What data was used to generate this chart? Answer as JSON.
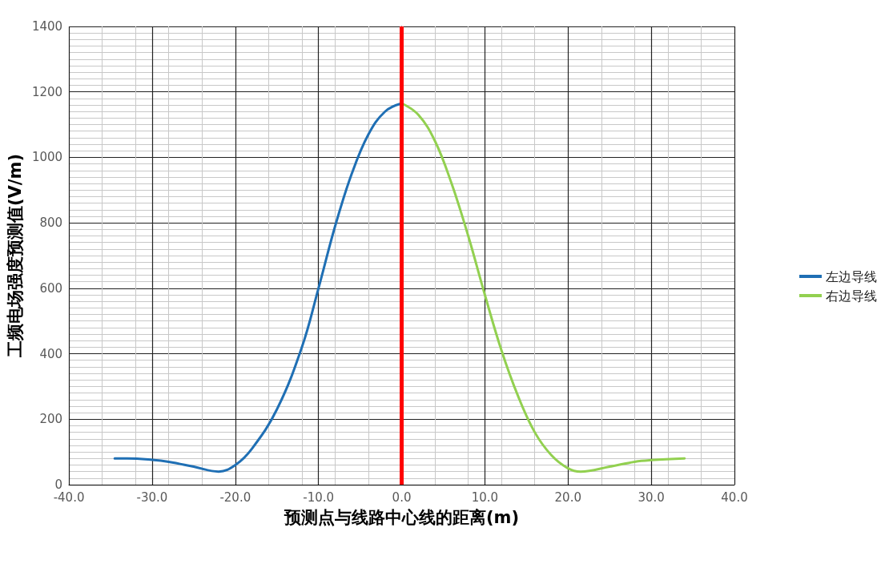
{
  "chart_data": {
    "type": "line",
    "xlabel": "预测点与线路中心线的距离(m)",
    "ylabel": "工频电场强度预测值(V/m)",
    "xlim": [
      -40,
      40
    ],
    "xticks": [
      {
        "value": -40,
        "label": "-40.0"
      },
      {
        "value": -30,
        "label": "-30.0"
      },
      {
        "value": -20,
        "label": "-20.0"
      },
      {
        "value": -10,
        "label": "-10.0"
      },
      {
        "value": 0,
        "label": "0.0"
      },
      {
        "value": 10,
        "label": "10.0"
      },
      {
        "value": 20,
        "label": "20.0"
      },
      {
        "value": 30,
        "label": "30.0"
      },
      {
        "value": 40,
        "label": "40.0"
      }
    ],
    "ylim": [
      0,
      1400
    ],
    "yticks": [
      0,
      200,
      400,
      600,
      800,
      1000,
      1200,
      1400
    ],
    "grid": true,
    "legend": "right",
    "marker": "none",
    "line_style": "solid",
    "ref_lines": [
      {
        "axis": "x",
        "value": 0,
        "color": "#ff0000"
      }
    ],
    "series": [
      {
        "name": "左边导线",
        "color": "#1f6fb4",
        "x": [
          -34.5,
          -33,
          -30,
          -28,
          -25,
          -22,
          -20,
          -18,
          -15,
          -12,
          -10,
          -8,
          -6,
          -4,
          -2,
          0
        ],
        "values": [
          80,
          80,
          76,
          70,
          55,
          40,
          60,
          110,
          230,
          420,
          600,
          790,
          950,
          1070,
          1140,
          1165
        ]
      },
      {
        "name": "右边导线",
        "color": "#92d050",
        "x": [
          0,
          2,
          4,
          6,
          8,
          10,
          12,
          14,
          16,
          18,
          20,
          21.5,
          25,
          28,
          30,
          34
        ],
        "values": [
          1165,
          1130,
          1050,
          920,
          760,
          580,
          410,
          270,
          160,
          90,
          50,
          40,
          55,
          70,
          75,
          80
        ]
      }
    ]
  }
}
